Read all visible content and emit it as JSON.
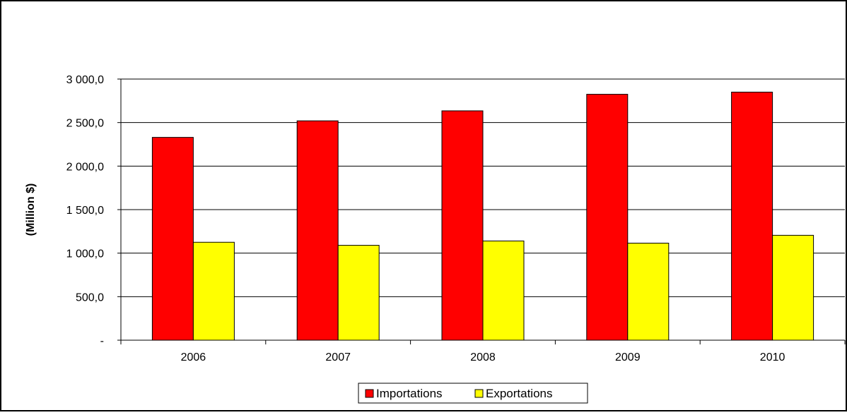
{
  "chart_data": {
    "type": "bar",
    "categories": [
      "2006",
      "2007",
      "2008",
      "2009",
      "2010"
    ],
    "series": [
      {
        "name": "Importations",
        "color": "#ff0000",
        "values": [
          2330,
          2520,
          2635,
          2825,
          2850
        ]
      },
      {
        "name": "Exportations",
        "color": "#ffff00",
        "values": [
          1125,
          1090,
          1140,
          1115,
          1205
        ]
      }
    ],
    "title": "",
    "xlabel": "",
    "ylabel": "(Million $)",
    "ylim": [
      0,
      3000
    ],
    "yticks": [
      0,
      500,
      1000,
      1500,
      2000,
      2500,
      3000
    ],
    "ytick_labels": [
      "-",
      "500,0",
      "1 000,0",
      "1 500,0",
      "2 000,0",
      "2 500,0",
      "3 000,0"
    ],
    "grid": true,
    "legend_position": "bottom"
  }
}
